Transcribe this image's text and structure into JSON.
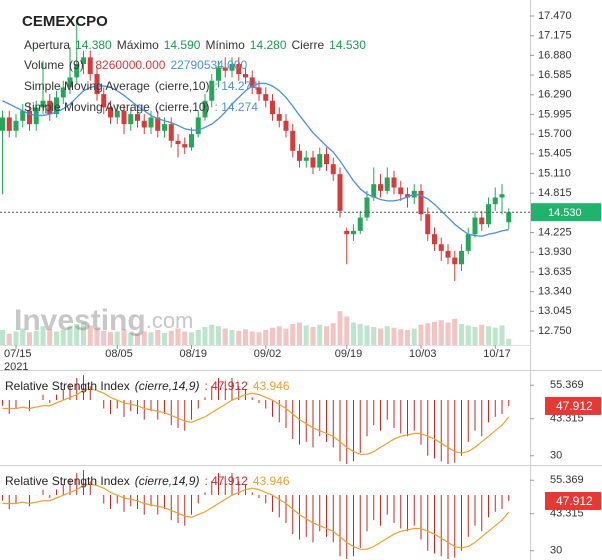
{
  "chart_data": [
    {
      "type": "candlestick",
      "title": "CEMEXCPO",
      "ohlc_legend": [
        {
          "label": "Apertura",
          "value": "14.380"
        },
        {
          "label": "Máximo",
          "value": "14.590"
        },
        {
          "label": "Mínimo",
          "value": "14.280"
        },
        {
          "label": "Cierre",
          "value": "14.530"
        }
      ],
      "indicators": [
        {
          "name": "Volume",
          "params": "(9)",
          "values": [
            ": 8260000.000",
            "22790534.000"
          ],
          "colors": [
            "#d63a3a",
            "#4a90d9"
          ]
        },
        {
          "name": "Simple Moving Average",
          "params": "(cierre,10)",
          "values": [
            ": 14.274"
          ],
          "colors": [
            "#4a90d9"
          ]
        },
        {
          "name": "Simple Moving Average",
          "params": "(cierre,10)",
          "values": [
            ": 14.274"
          ],
          "colors": [
            "#4a90d9"
          ]
        }
      ],
      "watermark": [
        "Investing",
        ".com"
      ],
      "categories": [
        null,
        null,
        "07/15",
        null,
        null,
        null,
        null,
        null,
        null,
        null,
        null,
        null,
        null,
        null,
        null,
        null,
        null,
        "08/05",
        null,
        null,
        null,
        null,
        null,
        null,
        null,
        null,
        null,
        null,
        "08/19",
        null,
        null,
        null,
        null,
        null,
        null,
        null,
        null,
        null,
        null,
        "09/02",
        null,
        null,
        null,
        null,
        null,
        null,
        null,
        null,
        null,
        null,
        null,
        "09/19",
        null,
        null,
        null,
        null,
        null,
        null,
        null,
        null,
        null,
        null,
        "10/03",
        null,
        null,
        null,
        null,
        null,
        null,
        null,
        null,
        null,
        null,
        "10/17",
        null,
        null
      ],
      "year_label": "2021",
      "open": [
        15.75,
        15.95,
        15.75,
        15.9,
        16.05,
        15.85,
        16.1,
        16.2,
        16.0,
        16.25,
        16.4,
        16.55,
        16.75,
        16.85,
        16.6,
        16.3,
        16.1,
        15.95,
        16.05,
        15.85,
        16.0,
        15.9,
        15.8,
        15.95,
        15.75,
        15.85,
        15.6,
        15.55,
        15.5,
        15.7,
        15.95,
        16.2,
        16.5,
        16.7,
        16.65,
        16.75,
        16.6,
        16.55,
        16.4,
        16.3,
        16.2,
        16.0,
        15.9,
        15.75,
        15.45,
        15.3,
        15.35,
        15.2,
        15.4,
        15.25,
        15.1,
        14.25,
        14.2,
        14.25,
        14.45,
        14.75,
        14.95,
        14.85,
        15.05,
        14.9,
        14.8,
        14.75,
        14.85,
        14.5,
        14.2,
        14.05,
        13.95,
        13.85,
        13.75,
        13.95,
        14.2,
        14.45,
        14.35,
        14.65,
        14.75,
        14.38
      ],
      "high": [
        16.05,
        16.05,
        16.0,
        16.15,
        16.15,
        16.2,
        16.8,
        16.3,
        16.35,
        16.5,
        17.0,
        17.4,
        16.95,
        16.95,
        16.7,
        16.4,
        16.2,
        16.15,
        16.15,
        16.1,
        16.1,
        16.0,
        16.05,
        16.05,
        15.95,
        15.95,
        15.7,
        15.65,
        15.8,
        16.05,
        16.3,
        16.6,
        16.8,
        16.85,
        16.85,
        16.85,
        16.7,
        16.65,
        16.5,
        16.4,
        16.3,
        16.1,
        16.0,
        15.85,
        15.55,
        15.45,
        15.45,
        15.5,
        15.5,
        15.35,
        15.2,
        14.3,
        14.35,
        14.55,
        14.85,
        15.2,
        15.1,
        15.2,
        15.15,
        15.0,
        14.9,
        14.95,
        14.95,
        14.6,
        14.3,
        14.15,
        14.05,
        13.95,
        14.05,
        14.3,
        14.55,
        14.55,
        14.75,
        14.9,
        14.95,
        14.59
      ],
      "low": [
        14.8,
        15.65,
        15.65,
        15.8,
        15.75,
        15.75,
        16.0,
        15.9,
        15.95,
        16.15,
        16.3,
        16.45,
        16.6,
        16.5,
        16.2,
        16.0,
        15.85,
        15.85,
        15.7,
        15.75,
        15.8,
        15.7,
        15.7,
        15.65,
        15.65,
        15.5,
        15.35,
        15.4,
        15.45,
        15.65,
        15.9,
        16.1,
        16.4,
        16.55,
        16.55,
        16.5,
        16.45,
        16.3,
        16.2,
        16.1,
        15.9,
        15.8,
        15.65,
        15.35,
        15.2,
        15.2,
        15.1,
        15.15,
        15.15,
        15.0,
        14.45,
        13.75,
        14.1,
        14.2,
        14.4,
        14.7,
        14.75,
        14.8,
        14.8,
        14.7,
        14.6,
        14.65,
        14.4,
        14.1,
        13.95,
        13.8,
        13.75,
        13.5,
        13.65,
        13.9,
        14.15,
        14.25,
        14.3,
        14.55,
        14.5,
        14.28
      ],
      "close": [
        15.95,
        15.75,
        15.9,
        16.05,
        15.85,
        16.1,
        16.2,
        16.0,
        16.25,
        16.4,
        16.55,
        16.75,
        16.85,
        16.6,
        16.3,
        16.1,
        15.95,
        16.05,
        15.85,
        16.0,
        15.9,
        15.8,
        15.95,
        15.75,
        15.85,
        15.6,
        15.55,
        15.5,
        15.7,
        15.95,
        16.2,
        16.5,
        16.7,
        16.65,
        16.75,
        16.6,
        16.55,
        16.4,
        16.3,
        16.2,
        16.0,
        15.9,
        15.75,
        15.45,
        15.3,
        15.35,
        15.2,
        15.4,
        15.25,
        15.1,
        14.55,
        14.2,
        14.25,
        14.45,
        14.75,
        14.95,
        14.85,
        15.05,
        14.9,
        14.8,
        14.75,
        14.85,
        14.5,
        14.2,
        14.05,
        13.95,
        13.85,
        13.75,
        13.95,
        14.2,
        14.45,
        14.35,
        14.65,
        14.75,
        14.8,
        14.53
      ],
      "up_color": "#26a65b",
      "down_color": "#d63a3a",
      "sma": {
        "color": "#4a90d9",
        "values": [
          16.2,
          16.15,
          16.1,
          16.05,
          16.0,
          15.98,
          15.98,
          16.0,
          16.03,
          16.08,
          16.15,
          16.25,
          16.35,
          16.4,
          16.42,
          16.42,
          16.4,
          16.35,
          16.28,
          16.2,
          16.12,
          16.05,
          15.98,
          15.93,
          15.9,
          15.87,
          15.83,
          15.78,
          15.76,
          15.76,
          15.8,
          15.85,
          15.93,
          16.03,
          16.15,
          16.25,
          16.35,
          16.42,
          16.46,
          16.46,
          16.42,
          16.35,
          16.25,
          16.12,
          15.98,
          15.85,
          15.72,
          15.62,
          15.52,
          15.43,
          15.3,
          15.15,
          15.0,
          14.88,
          14.8,
          14.76,
          14.72,
          14.7,
          14.7,
          14.72,
          14.76,
          14.8,
          14.78,
          14.73,
          14.65,
          14.55,
          14.45,
          14.35,
          14.27,
          14.2,
          14.18,
          14.17,
          14.2,
          14.22,
          14.25,
          14.27
        ]
      },
      "volume": {
        "ylim": [
          0,
          60000000
        ],
        "values": [
          20000000,
          15000000,
          18000000,
          22000000,
          17000000,
          19000000,
          25000000,
          21000000,
          18000000,
          20000000,
          24000000,
          28000000,
          30000000,
          26000000,
          22000000,
          19000000,
          17000000,
          18000000,
          21000000,
          16000000,
          15000000,
          18000000,
          17000000,
          20000000,
          16000000,
          19000000,
          22000000,
          18000000,
          17000000,
          20000000,
          24000000,
          27000000,
          25000000,
          22000000,
          20000000,
          19000000,
          21000000,
          18000000,
          17000000,
          20000000,
          23000000,
          25000000,
          22000000,
          28000000,
          30000000,
          26000000,
          24000000,
          27000000,
          25000000,
          29000000,
          45000000,
          38000000,
          30000000,
          28000000,
          26000000,
          24000000,
          22000000,
          25000000,
          23000000,
          21000000,
          20000000,
          22000000,
          27000000,
          29000000,
          31000000,
          33000000,
          30000000,
          35000000,
          28000000,
          26000000,
          24000000,
          27000000,
          25000000,
          23000000,
          26000000,
          8260000
        ]
      },
      "last_price_label": "14.530",
      "last_price_color": "#1fb36b",
      "ylim": [
        12.54,
        17.71
      ],
      "yticks": [
        {
          "value": 17.47,
          "label": "17.470"
        },
        {
          "value": 17.175,
          "label": "17.175"
        },
        {
          "value": 16.88,
          "label": "16.880"
        },
        {
          "value": 16.585,
          "label": "16.585"
        },
        {
          "value": 16.29,
          "label": "16.290"
        },
        {
          "value": 15.995,
          "label": "15.995"
        },
        {
          "value": 15.7,
          "label": "15.700"
        },
        {
          "value": 15.405,
          "label": "15.405"
        },
        {
          "value": 15.11,
          "label": "15.110"
        },
        {
          "value": 14.815,
          "label": "14.815"
        },
        {
          "value": 14.225,
          "label": "14.225"
        },
        {
          "value": 13.93,
          "label": "13.930"
        },
        {
          "value": 13.635,
          "label": "13.635"
        },
        {
          "value": 13.34,
          "label": "13.340"
        },
        {
          "value": 13.045,
          "label": "13.045"
        },
        {
          "value": 12.75,
          "label": "12.750"
        }
      ]
    },
    {
      "type": "rsi",
      "title": "Relative Strength Index",
      "params": "(cierre,14,9)",
      "legend_values": [
        ": 47.912",
        "43.946"
      ],
      "color": "#c62828",
      "signal_color": "#f0a030",
      "values": [
        48,
        45,
        47,
        50,
        46,
        50,
        52,
        49,
        52,
        54,
        56,
        58,
        59,
        55,
        50,
        47,
        45,
        47,
        44,
        46,
        45,
        43,
        46,
        43,
        45,
        41,
        40,
        39,
        43,
        47,
        51,
        55,
        58,
        57,
        58,
        55,
        54,
        51,
        49,
        47,
        44,
        42,
        40,
        36,
        34,
        35,
        33,
        37,
        35,
        33,
        28,
        27,
        28,
        31,
        37,
        41,
        39,
        43,
        40,
        38,
        37,
        39,
        34,
        30,
        29,
        28,
        27,
        27.5,
        30,
        35,
        39,
        37,
        42,
        44,
        45,
        47.912
      ],
      "signal": [
        47,
        47,
        47,
        47.5,
        47,
        47.5,
        48,
        48,
        49,
        50,
        51,
        52,
        53.5,
        54,
        53.5,
        52.5,
        51,
        50,
        49,
        48.5,
        48,
        47,
        46.5,
        46,
        45.5,
        44.5,
        43.5,
        42.5,
        42,
        43,
        44,
        45.5,
        47,
        48.5,
        50,
        51,
        52,
        52.5,
        52,
        51,
        50,
        48.5,
        47,
        45,
        43,
        41.5,
        40,
        39,
        38,
        37,
        35,
        33,
        31.5,
        30.5,
        30.5,
        31.5,
        33,
        34.5,
        36,
        37,
        37.5,
        38,
        38,
        37,
        36,
        34.5,
        33,
        31.5,
        31,
        31.5,
        33,
        35,
        37,
        39,
        41,
        43.946
      ],
      "ylim": [
        26.3,
        58.7
      ],
      "yticks": [
        55.369,
        43.315,
        30
      ]
    }
  ]
}
